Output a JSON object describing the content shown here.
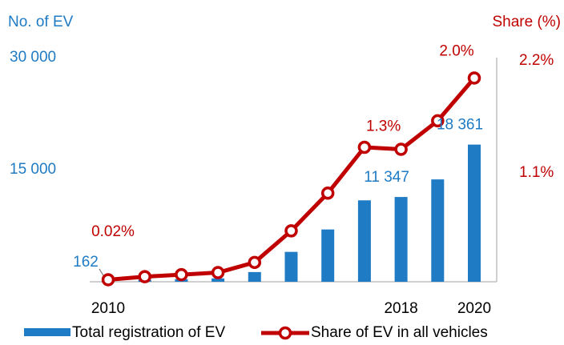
{
  "chart_data": {
    "type": "bar-line",
    "y_axis_label": "No. of EV",
    "y2_axis_label": "Share (%)",
    "categories": [
      "2010",
      null,
      null,
      null,
      null,
      null,
      null,
      null,
      "2018",
      null,
      "2020"
    ],
    "series": [
      {
        "name": "Total registration of EV",
        "type": "bar",
        "color": "#1f7bc4",
        "values": [
          162,
          250,
          350,
          450,
          1300,
          4000,
          7000,
          10900,
          11347,
          13700,
          18361
        ],
        "value_labels": [
          "162",
          null,
          null,
          null,
          null,
          null,
          null,
          null,
          "11 347",
          null,
          "18 361"
        ]
      },
      {
        "name": "Share of EV in all vehicles",
        "type": "line",
        "axis": "y2",
        "color": "#c00000",
        "values": [
          0.02,
          0.05,
          0.07,
          0.09,
          0.19,
          0.5,
          0.87,
          1.32,
          1.3,
          1.58,
          2.0
        ],
        "value_labels": [
          "0.02%",
          null,
          null,
          null,
          null,
          null,
          null,
          null,
          "1.3%",
          null,
          "2.0%"
        ]
      }
    ],
    "ylim": [
      0,
      30000
    ],
    "yticks": [
      {
        "value": 15000,
        "label": "15 000"
      },
      {
        "value": 30000,
        "label": "30 000"
      }
    ],
    "y2lim": [
      0,
      2.2
    ],
    "y2ticks": [
      {
        "value": 1.1,
        "label": "1.1%"
      },
      {
        "value": 2.2,
        "label": "2.2%"
      }
    ],
    "legend": "bottom"
  }
}
